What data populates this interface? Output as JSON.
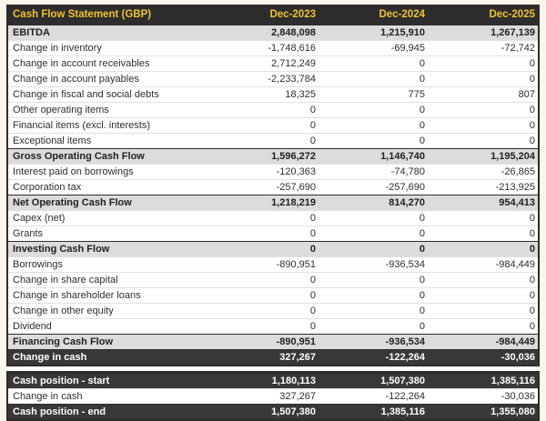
{
  "table": {
    "title": "Cash Flow Statement (GBP)",
    "columns": [
      "Dec-2023",
      "Dec-2024",
      "Dec-2025"
    ],
    "rows": [
      {
        "label": "EBITDA",
        "values": [
          "2,848,098",
          "1,215,910",
          "1,267,139"
        ],
        "style": "subtotal"
      },
      {
        "label": "Change in inventory",
        "values": [
          "-1,748,616",
          "-69,945",
          "-72,742"
        ],
        "style": "normal"
      },
      {
        "label": "Change in account receivables",
        "values": [
          "2,712,249",
          "0",
          "0"
        ],
        "style": "normal"
      },
      {
        "label": "Change in account payables",
        "values": [
          "-2,233,784",
          "0",
          "0"
        ],
        "style": "normal"
      },
      {
        "label": "Change in fiscal and social debts",
        "values": [
          "18,325",
          "775",
          "807"
        ],
        "style": "normal"
      },
      {
        "label": "Other operating items",
        "values": [
          "0",
          "0",
          "0"
        ],
        "style": "normal"
      },
      {
        "label": "Financial items (excl. interests)",
        "values": [
          "0",
          "0",
          "0"
        ],
        "style": "normal"
      },
      {
        "label": "Exceptional items",
        "values": [
          "0",
          "0",
          "0"
        ],
        "style": "normal"
      },
      {
        "label": "Gross Operating Cash Flow",
        "values": [
          "1,596,272",
          "1,146,740",
          "1,195,204"
        ],
        "style": "subtotal"
      },
      {
        "label": "Interest paid on borrowings",
        "values": [
          "-120,363",
          "-74,780",
          "-26,865"
        ],
        "style": "normal"
      },
      {
        "label": "Corporation tax",
        "values": [
          "-257,690",
          "-257,690",
          "-213,925"
        ],
        "style": "normal"
      },
      {
        "label": "Net Operating Cash Flow",
        "values": [
          "1,218,219",
          "814,270",
          "954,413"
        ],
        "style": "subtotal"
      },
      {
        "label": "Capex (net)",
        "values": [
          "0",
          "0",
          "0"
        ],
        "style": "normal"
      },
      {
        "label": "Grants",
        "values": [
          "0",
          "0",
          "0"
        ],
        "style": "normal"
      },
      {
        "label": "Investing Cash Flow",
        "values": [
          "0",
          "0",
          "0"
        ],
        "style": "subtotal"
      },
      {
        "label": "Borrowings",
        "values": [
          "-890,951",
          "-936,534",
          "-984,449"
        ],
        "style": "normal"
      },
      {
        "label": "Change in share capital",
        "values": [
          "0",
          "0",
          "0"
        ],
        "style": "normal"
      },
      {
        "label": "Change in shareholder loans",
        "values": [
          "0",
          "0",
          "0"
        ],
        "style": "normal"
      },
      {
        "label": "Change in other equity",
        "values": [
          "0",
          "0",
          "0"
        ],
        "style": "normal"
      },
      {
        "label": "Dividend",
        "values": [
          "0",
          "0",
          "0"
        ],
        "style": "normal"
      },
      {
        "label": "Financing Cash Flow",
        "values": [
          "-890,951",
          "-936,534",
          "-984,449"
        ],
        "style": "subtotal"
      },
      {
        "label": "Change in cash",
        "values": [
          "327,267",
          "-122,264",
          "-30,036"
        ],
        "style": "dark"
      }
    ],
    "footer_rows": [
      {
        "label": "Cash position - start",
        "values": [
          "1,180,113",
          "1,507,380",
          "1,385,116"
        ],
        "style": "dark"
      },
      {
        "label": "Change in cash",
        "values": [
          "327,267",
          "-122,264",
          "-30,036"
        ],
        "style": "normal"
      },
      {
        "label": "Cash position - end",
        "values": [
          "1,507,380",
          "1,385,116",
          "1,355,080"
        ],
        "style": "dark"
      }
    ],
    "colors": {
      "header_bg": "#2d2d2d",
      "header_text": "#f2c230",
      "subtotal_bg": "#dcdcdc",
      "dark_row_bg": "#383838",
      "page_bg": "#fbf6ea"
    }
  }
}
